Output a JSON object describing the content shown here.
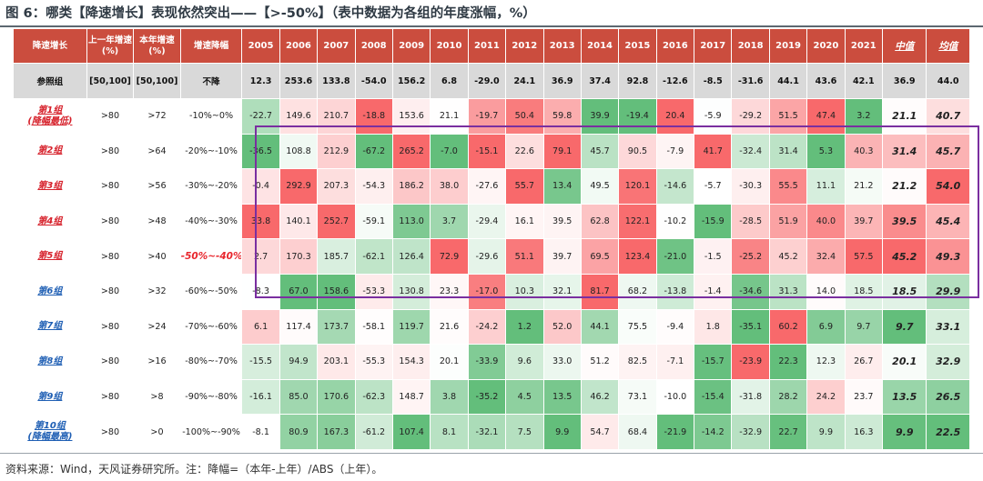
{
  "title": "图 6：哪类【降速增长】表现依然突出——【>-50%】（表中数据为各组的年度涨幅，%）",
  "source": "资料来源：Wind，天风证券研究所。注：降幅=（本年-上年）/ABS（上年）。",
  "header": {
    "group": "降速增长",
    "prev_year": "上一年增速(%)",
    "this_year": "本年增速(%)",
    "decline": "增速降幅",
    "years": [
      "2005",
      "2006",
      "2007",
      "2008",
      "2009",
      "2010",
      "2011",
      "2012",
      "2013",
      "2014",
      "2015",
      "2016",
      "2017",
      "2018",
      "2019",
      "2020",
      "2021"
    ],
    "median": "中值",
    "mean": "均值"
  },
  "reference": {
    "label": "参照组",
    "prev": "[50,100]",
    "this": "[50,100]",
    "decline": "不降",
    "values": [
      "12.3",
      "253.6",
      "133.8",
      "-54.0",
      "156.2",
      "6.8",
      "-29.0",
      "24.1",
      "36.9",
      "37.4",
      "92.8",
      "-12.6",
      "-8.5",
      "-31.6",
      "44.1",
      "43.6",
      "42.1"
    ],
    "median": "36.9",
    "mean": "44.0"
  },
  "groups": [
    {
      "label": "第1组 (降幅最低)",
      "prev": ">80",
      "this": ">72",
      "decline": "-10%~0%",
      "values": [
        "-22.7",
        "149.6",
        "210.7",
        "-18.8",
        "153.6",
        "21.1",
        "-19.7",
        "50.4",
        "59.8",
        "39.9",
        "-19.4",
        "20.4",
        "-5.9",
        "-29.2",
        "51.5",
        "47.4",
        "3.2"
      ],
      "median": "21.1",
      "mean": "40.7"
    },
    {
      "label": "第2组",
      "prev": ">80",
      "this": ">64",
      "decline": "-20%~-10%",
      "values": [
        "-36.5",
        "108.8",
        "212.9",
        "-67.2",
        "265.2",
        "-7.0",
        "-15.1",
        "22.6",
        "79.1",
        "45.7",
        "90.5",
        "-7.9",
        "41.7",
        "-32.4",
        "31.4",
        "5.3",
        "40.3"
      ],
      "median": "31.4",
      "mean": "45.7"
    },
    {
      "label": "第3组",
      "prev": ">80",
      "this": ">56",
      "decline": "-30%~-20%",
      "values": [
        "-0.4",
        "292.9",
        "207.3",
        "-54.3",
        "186.2",
        "38.0",
        "-27.6",
        "55.7",
        "13.4",
        "49.5",
        "120.1",
        "-14.6",
        "-5.7",
        "-30.3",
        "55.5",
        "11.1",
        "21.2"
      ],
      "median": "21.2",
      "mean": "54.0"
    },
    {
      "label": "第4组",
      "prev": ">80",
      "this": ">48",
      "decline": "-40%~-30%",
      "values": [
        "33.8",
        "140.1",
        "252.7",
        "-59.1",
        "113.0",
        "3.7",
        "-29.4",
        "16.1",
        "39.5",
        "62.8",
        "122.1",
        "-10.2",
        "-15.9",
        "-28.5",
        "51.9",
        "40.0",
        "39.7"
      ],
      "median": "39.5",
      "mean": "45.4"
    },
    {
      "label": "第5组",
      "prev": ">80",
      "this": ">40",
      "decline": "-50%~-40%",
      "values": [
        "2.7",
        "170.3",
        "185.7",
        "-62.1",
        "126.4",
        "72.9",
        "-29.6",
        "51.1",
        "39.7",
        "69.5",
        "123.4",
        "-21.0",
        "-1.5",
        "-25.2",
        "45.2",
        "32.4",
        "57.5"
      ],
      "median": "45.2",
      "mean": "49.3"
    },
    {
      "label": "第6组",
      "prev": ">80",
      "this": ">32",
      "decline": "-60%~-50%",
      "values": [
        "-8.3",
        "67.0",
        "158.6",
        "-53.3",
        "130.8",
        "23.3",
        "-17.0",
        "10.3",
        "32.1",
        "81.7",
        "68.2",
        "-13.8",
        "-1.4",
        "-34.6",
        "31.3",
        "14.0",
        "18.5"
      ],
      "median": "18.5",
      "mean": "29.9"
    },
    {
      "label": "第7组",
      "prev": ">80",
      "this": ">24",
      "decline": "-70%~-60%",
      "values": [
        "6.1",
        "117.4",
        "173.7",
        "-58.1",
        "119.7",
        "21.6",
        "-24.2",
        "1.2",
        "52.0",
        "44.1",
        "75.5",
        "-9.4",
        "1.8",
        "-35.1",
        "60.2",
        "6.9",
        "9.7"
      ],
      "median": "9.7",
      "mean": "33.1"
    },
    {
      "label": "第8组",
      "prev": ">80",
      "this": ">16",
      "decline": "-80%~-70%",
      "values": [
        "-15.5",
        "94.9",
        "203.1",
        "-55.3",
        "154.3",
        "20.1",
        "-33.9",
        "9.6",
        "33.0",
        "51.2",
        "82.5",
        "-7.1",
        "-15.7",
        "-23.9",
        "22.3",
        "12.3",
        "26.7"
      ],
      "median": "20.1",
      "mean": "32.9"
    },
    {
      "label": "第9组",
      "prev": ">80",
      "this": ">8",
      "decline": "-90%~-80%",
      "values": [
        "-16.1",
        "85.0",
        "170.6",
        "-62.3",
        "148.7",
        "3.8",
        "-35.2",
        "4.5",
        "13.5",
        "46.2",
        "73.1",
        "-10.0",
        "-15.4",
        "-31.8",
        "28.2",
        "24.2",
        "23.7"
      ],
      "median": "13.5",
      "mean": "26.5"
    },
    {
      "label": "第10组 (降幅最高)",
      "prev": ">80",
      "this": ">0",
      "decline": "-100%~-90%",
      "values": [
        "-8.1",
        "80.9",
        "167.3",
        "-61.2",
        "107.4",
        "8.1",
        "-32.1",
        "7.5",
        "9.9",
        "54.7",
        "68.4",
        "-21.9",
        "-14.2",
        "-32.9",
        "22.7",
        "9.9",
        "16.3"
      ],
      "median": "9.9",
      "mean": "22.5"
    }
  ],
  "colors": {
    "header_bg": "#cb4d3e",
    "reference_bg": "#d9d9d9",
    "red_label": "#d6202a",
    "blue_label": "#1f5fb4",
    "highlight_box": "#7a2fa0",
    "heat_high": "#f8696b",
    "heat_mid": "#ffffff",
    "heat_low": "#63be7b"
  }
}
